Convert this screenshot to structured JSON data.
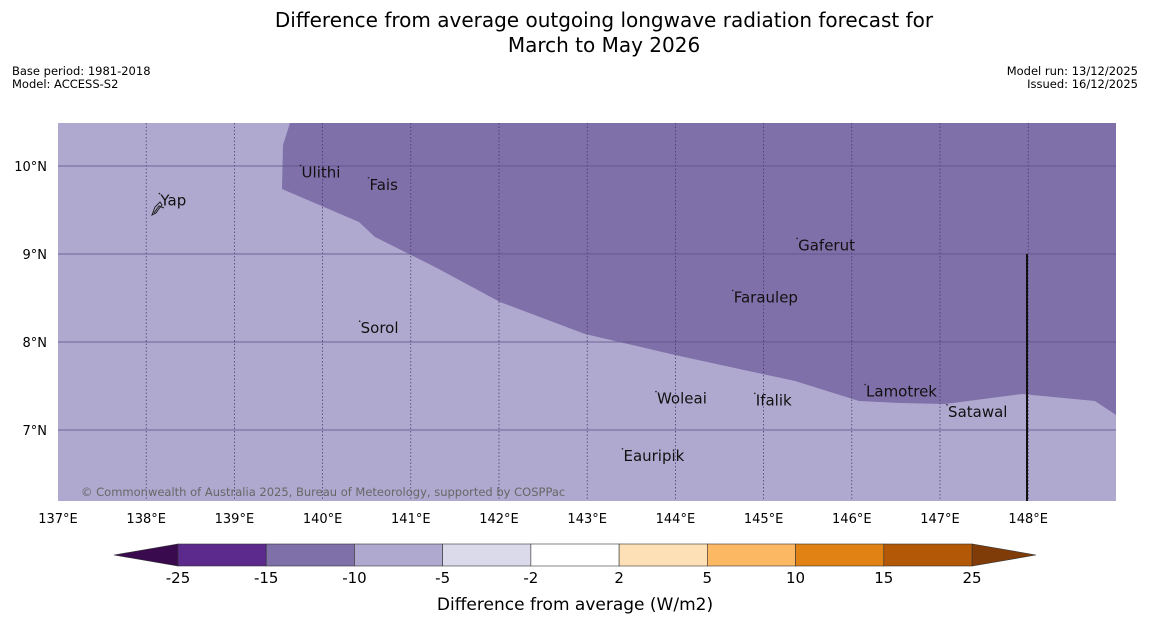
{
  "title": {
    "line1": "Difference from average outgoing longwave radiation forecast for",
    "line2": "March to May 2026"
  },
  "meta_left": {
    "base_period": "Base period: 1981-2018",
    "model": "Model: ACCESS-S2"
  },
  "meta_right": {
    "model_run": "Model run: 13/12/2025",
    "issued": "Issued: 16/12/2025"
  },
  "map": {
    "lon_labels": [
      "137°E",
      "138°E",
      "139°E",
      "140°E",
      "141°E",
      "142°E",
      "143°E",
      "144°E",
      "145°E",
      "146°E",
      "147°E",
      "148°E"
    ],
    "lat_labels": [
      "10°N",
      "9°N",
      "8°N",
      "7°N"
    ],
    "copyright": "© Commonwealth of Australia 2025, Bureau of Meteorology, supported by COSPPac",
    "places": [
      {
        "name": "Yap",
        "lon": 138.15,
        "lat": 9.55
      },
      {
        "name": "Ulithi",
        "lon": 139.75,
        "lat": 9.87
      },
      {
        "name": "Fais",
        "lon": 140.52,
        "lat": 9.73
      },
      {
        "name": "Sorol",
        "lon": 140.42,
        "lat": 8.1
      },
      {
        "name": "Gaferut",
        "lon": 145.38,
        "lat": 9.04
      },
      {
        "name": "Faraulep",
        "lon": 144.65,
        "lat": 8.45
      },
      {
        "name": "Lamotrek",
        "lon": 146.15,
        "lat": 7.38
      },
      {
        "name": "Woleai",
        "lon": 143.78,
        "lat": 7.3
      },
      {
        "name": "Ifalik",
        "lon": 144.9,
        "lat": 7.28
      },
      {
        "name": "Satawal",
        "lon": 147.08,
        "lat": 7.15
      },
      {
        "name": "Eauripik",
        "lon": 143.4,
        "lat": 6.65
      }
    ],
    "regions": [
      {
        "category": "-15 to -10",
        "color": "#7f70a9"
      },
      {
        "category": "-10 to -5",
        "color": "#b0a9cf"
      }
    ]
  },
  "legend": {
    "title": "Difference from average (W/m2)",
    "ticks": [
      "-25",
      "-15",
      "-10",
      "-5",
      "-2",
      "2",
      "5",
      "10",
      "15",
      "25"
    ],
    "colors": {
      "below_min": "#3a0a4f",
      "bins": [
        "#5b2a8c",
        "#7f70a9",
        "#b0a9cf",
        "#dadaeb",
        "#ffffff",
        "#fee0b6",
        "#fdb863",
        "#e08214",
        "#b35806"
      ],
      "above_max": "#7f3b08"
    }
  }
}
